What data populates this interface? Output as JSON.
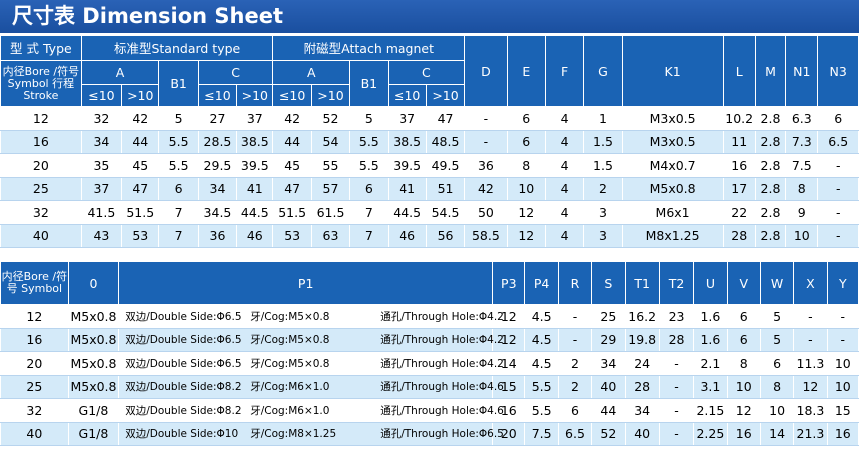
{
  "title": "尺寸表 Dimension Sheet",
  "table1": {
    "hdr_type": "型 式 Type",
    "hdr_std": "标准型Standard type",
    "hdr_att": "附磁型Attach  magnet",
    "hdr_bore": "内径Bore /符号Symbol 行程 Stroke",
    "hdr_A": "A",
    "hdr_B1": "B1",
    "hdr_C": "C",
    "le10": "≤10",
    "gt10": ">10",
    "cols": [
      "D",
      "E",
      "F",
      "G",
      "K1",
      "L",
      "M",
      "N1",
      "N3"
    ],
    "rows": [
      [
        "12",
        "32",
        "42",
        "5",
        "27",
        "37",
        "42",
        "52",
        "5",
        "37",
        "47",
        "-",
        "6",
        "4",
        "1",
        "M3x0.5",
        "10.2",
        "2.8",
        "6.3",
        "6"
      ],
      [
        "16",
        "34",
        "44",
        "5.5",
        "28.5",
        "38.5",
        "44",
        "54",
        "5.5",
        "38.5",
        "48.5",
        "-",
        "6",
        "4",
        "1.5",
        "M3x0.5",
        "11",
        "2.8",
        "7.3",
        "6.5"
      ],
      [
        "20",
        "35",
        "45",
        "5.5",
        "29.5",
        "39.5",
        "45",
        "55",
        "5.5",
        "39.5",
        "49.5",
        "36",
        "8",
        "4",
        "1.5",
        "M4x0.7",
        "16",
        "2.8",
        "7.5",
        "-"
      ],
      [
        "25",
        "37",
        "47",
        "6",
        "34",
        "41",
        "47",
        "57",
        "6",
        "41",
        "51",
        "42",
        "10",
        "4",
        "2",
        "M5x0.8",
        "17",
        "2.8",
        "8",
        "-"
      ],
      [
        "32",
        "41.5",
        "51.5",
        "7",
        "34.5",
        "44.5",
        "51.5",
        "61.5",
        "7",
        "44.5",
        "54.5",
        "50",
        "12",
        "4",
        "3",
        "M6x1",
        "22",
        "2.8",
        "9",
        "-"
      ],
      [
        "40",
        "43",
        "53",
        "7",
        "36",
        "46",
        "53",
        "63",
        "7",
        "46",
        "56",
        "58.5",
        "12",
        "4",
        "3",
        "M8x1.25",
        "28",
        "2.8",
        "10",
        "-"
      ]
    ]
  },
  "table2": {
    "hdr_bore": "内径Bore /符号 Symbol",
    "cols": [
      "0",
      "P1",
      "P3",
      "P4",
      "R",
      "S",
      "T1",
      "T2",
      "U",
      "V",
      "W",
      "X",
      "Y"
    ],
    "rows": [
      {
        "bore": "12",
        "o": "M5x0.8",
        "p1a": "双边/Double Side:Φ6.5",
        "p1b": "牙/Cog:M5×0.8",
        "p1c": "通孔/Through Hole:Φ4.2",
        "rest": [
          "12",
          "4.5",
          "-",
          "25",
          "16.2",
          "23",
          "1.6",
          "6",
          "5",
          "-",
          "-"
        ]
      },
      {
        "bore": "16",
        "o": "M5x0.8",
        "p1a": "双边/Double Side:Φ6.5",
        "p1b": "牙/Cog:M5×0.8",
        "p1c": "通孔/Through Hole:Φ4.2",
        "rest": [
          "12",
          "4.5",
          "-",
          "29",
          "19.8",
          "28",
          "1.6",
          "6",
          "5",
          "-",
          "-"
        ]
      },
      {
        "bore": "20",
        "o": "M5x0.8",
        "p1a": "双边/Double Side:Φ6.5",
        "p1b": "牙/Cog:M5×0.8",
        "p1c": "通孔/Through Hole:Φ4.2",
        "rest": [
          "14",
          "4.5",
          "2",
          "34",
          "24",
          "-",
          "2.1",
          "8",
          "6",
          "11.3",
          "10"
        ]
      },
      {
        "bore": "25",
        "o": "M5x0.8",
        "p1a": "双边/Double Side:Φ8.2",
        "p1b": "牙/Cog:M6×1.0",
        "p1c": "通孔/Through Hole:Φ4.6",
        "rest": [
          "15",
          "5.5",
          "2",
          "40",
          "28",
          "-",
          "3.1",
          "10",
          "8",
          "12",
          "10"
        ]
      },
      {
        "bore": "32",
        "o": "G1/8",
        "p1a": "双边/Double Side:Φ8.2",
        "p1b": "牙/Cog:M6×1.0",
        "p1c": "通孔/Through Hole:Φ4.6",
        "rest": [
          "16",
          "5.5",
          "6",
          "44",
          "34",
          "-",
          "2.15",
          "12",
          "10",
          "18.3",
          "15"
        ]
      },
      {
        "bore": "40",
        "o": "G1/8",
        "p1a": "双边/Double Side:Φ10",
        "p1b": "牙/Cog:M8×1.25",
        "p1c": "通孔/Through Hole:Φ6.5",
        "rest": [
          "20",
          "7.5",
          "6.5",
          "52",
          "40",
          "-",
          "2.25",
          "16",
          "14",
          "21.3",
          "16"
        ]
      }
    ]
  }
}
